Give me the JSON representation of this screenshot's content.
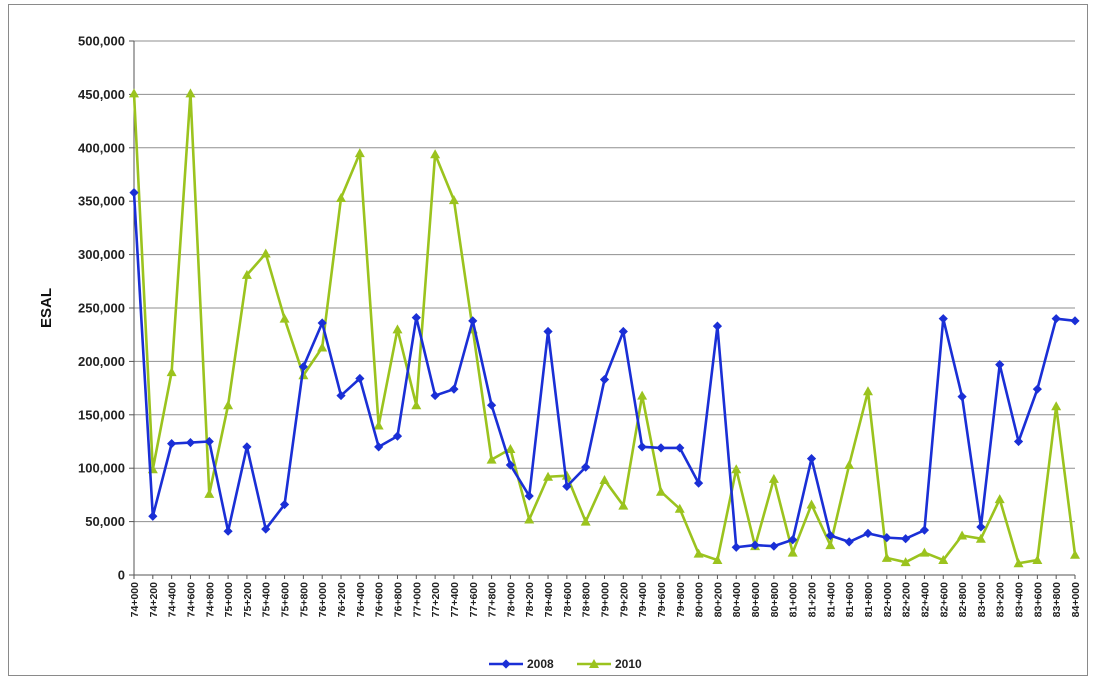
{
  "chart_data": {
    "type": "line",
    "title": "",
    "xlabel": "",
    "ylabel": "ESAL",
    "ylim": [
      0,
      500000
    ],
    "yticks": [
      0,
      50000,
      100000,
      150000,
      200000,
      250000,
      300000,
      350000,
      400000,
      450000,
      500000
    ],
    "ytick_labels": [
      "0",
      "50,000",
      "100,000",
      "150,000",
      "200,000",
      "250,000",
      "300,000",
      "350,000",
      "400,000",
      "450,000",
      "500,000"
    ],
    "grid": true,
    "legend": "bottom",
    "categories": [
      "74+000",
      "74+200",
      "74+400",
      "74+600",
      "74+800",
      "75+000",
      "75+200",
      "75+400",
      "75+600",
      "75+800",
      "76+000",
      "76+200",
      "76+400",
      "76+600",
      "76+800",
      "77+000",
      "77+200",
      "77+400",
      "77+600",
      "77+800",
      "78+000",
      "78+200",
      "78+400",
      "78+600",
      "78+800",
      "79+000",
      "79+200",
      "79+400",
      "79+600",
      "79+800",
      "80+000",
      "80+200",
      "80+400",
      "80+600",
      "80+800",
      "81+000",
      "81+200",
      "81+400",
      "81+600",
      "81+800",
      "82+000",
      "82+200",
      "82+400",
      "82+600",
      "82+800",
      "83+000",
      "83+200",
      "83+400",
      "83+600",
      "83+800",
      "84+000"
    ],
    "series": [
      {
        "name": "2008",
        "color": "#1a2fd6",
        "marker": "diamond",
        "values": [
          358000,
          55000,
          123000,
          124000,
          125000,
          41000,
          120000,
          43000,
          66000,
          195000,
          236000,
          168000,
          184000,
          120000,
          130000,
          241000,
          168000,
          174000,
          238000,
          159000,
          103000,
          74000,
          228000,
          83000,
          101000,
          183000,
          228000,
          120000,
          119000,
          119000,
          86000,
          233000,
          26000,
          28000,
          27000,
          33000,
          109000,
          37000,
          31000,
          39000,
          35000,
          34000,
          42000,
          240000,
          167000,
          45000,
          197000,
          125000,
          174000,
          240000,
          238000
        ]
      },
      {
        "name": "2010",
        "color": "#9bc31e",
        "marker": "triangle",
        "values": [
          451000,
          99000,
          190000,
          451000,
          76000,
          159000,
          281000,
          301000,
          240000,
          187000,
          213000,
          353000,
          395000,
          140000,
          230000,
          159000,
          394000,
          351000,
          230000,
          108000,
          118000,
          52000,
          92000,
          93000,
          50000,
          89000,
          65000,
          168000,
          78000,
          62000,
          20000,
          14000,
          99000,
          27000,
          90000,
          21000,
          66000,
          28000,
          103000,
          172000,
          16000,
          12000,
          21000,
          14000,
          37000,
          34000,
          71000,
          11000,
          14000,
          158000,
          19000
        ]
      }
    ]
  }
}
